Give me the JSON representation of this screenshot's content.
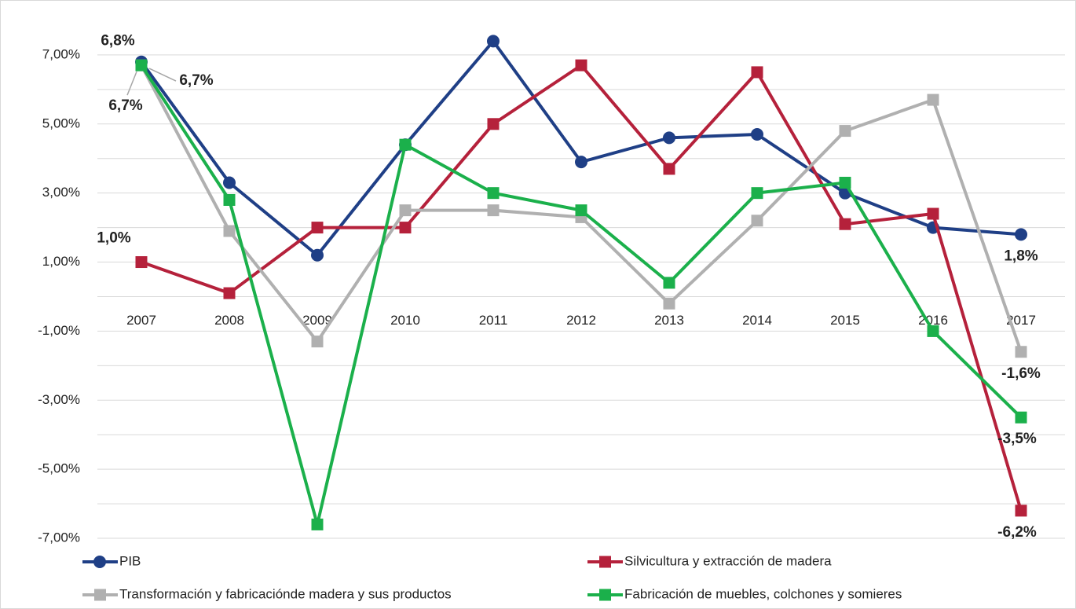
{
  "chart_data": {
    "type": "line",
    "categories": [
      "2007",
      "2008",
      "2009",
      "2010",
      "2011",
      "2012",
      "2013",
      "2014",
      "2015",
      "2016",
      "2017"
    ],
    "ylim": [
      -7,
      8
    ],
    "yticks": [
      {
        "value": 7,
        "label": "7,00%"
      },
      {
        "value": 5,
        "label": "5,00%"
      },
      {
        "value": 3,
        "label": "3,00%"
      },
      {
        "value": 1,
        "label": "1,00%"
      },
      {
        "value": -1,
        "label": "-1,00%"
      },
      {
        "value": -3,
        "label": "-3,00%"
      },
      {
        "value": -5,
        "label": "-5,00%"
      },
      {
        "value": -7,
        "label": "-7,00%"
      }
    ],
    "minor_yticks": [
      6,
      4,
      2,
      0,
      -2,
      -4,
      -6
    ],
    "grid": true,
    "legend": "bottom",
    "series": [
      {
        "name": "PIB",
        "color": "#1f3f86",
        "marker": "circle",
        "values": [
          6.8,
          3.3,
          1.2,
          4.4,
          7.4,
          3.9,
          4.6,
          4.7,
          3.0,
          2.0,
          1.8
        ],
        "value_labels": [
          "6,8%",
          null,
          null,
          null,
          null,
          null,
          null,
          null,
          null,
          null,
          "1,8%"
        ]
      },
      {
        "name": "Silvicultura y extracción de madera",
        "color": "#b5213b",
        "marker": "square",
        "values": [
          1.0,
          0.1,
          2.0,
          2.0,
          5.0,
          6.7,
          3.7,
          6.5,
          2.1,
          2.4,
          -6.2
        ],
        "value_labels": [
          "1,0%",
          null,
          null,
          null,
          null,
          null,
          null,
          null,
          null,
          null,
          "-6,2%"
        ]
      },
      {
        "name": "Transformación y fabricaciónde madera y sus productos",
        "color": "#b0b0b0",
        "marker": "square",
        "values": [
          6.7,
          1.9,
          -1.3,
          2.5,
          2.5,
          2.3,
          -0.2,
          2.2,
          4.8,
          5.7,
          -1.6
        ],
        "value_labels": [
          "6,7%",
          null,
          null,
          null,
          null,
          null,
          null,
          null,
          null,
          null,
          "-1,6%"
        ]
      },
      {
        "name": "Fabricación de muebles, colchones y somieres",
        "color": "#1bb04b",
        "marker": "square",
        "values": [
          6.7,
          2.8,
          -6.6,
          4.4,
          3.0,
          2.5,
          0.4,
          3.0,
          3.3,
          -1.0,
          -3.5
        ],
        "value_labels": [
          "6,7%",
          null,
          null,
          null,
          null,
          null,
          null,
          null,
          null,
          null,
          "-3,5%"
        ]
      }
    ]
  }
}
